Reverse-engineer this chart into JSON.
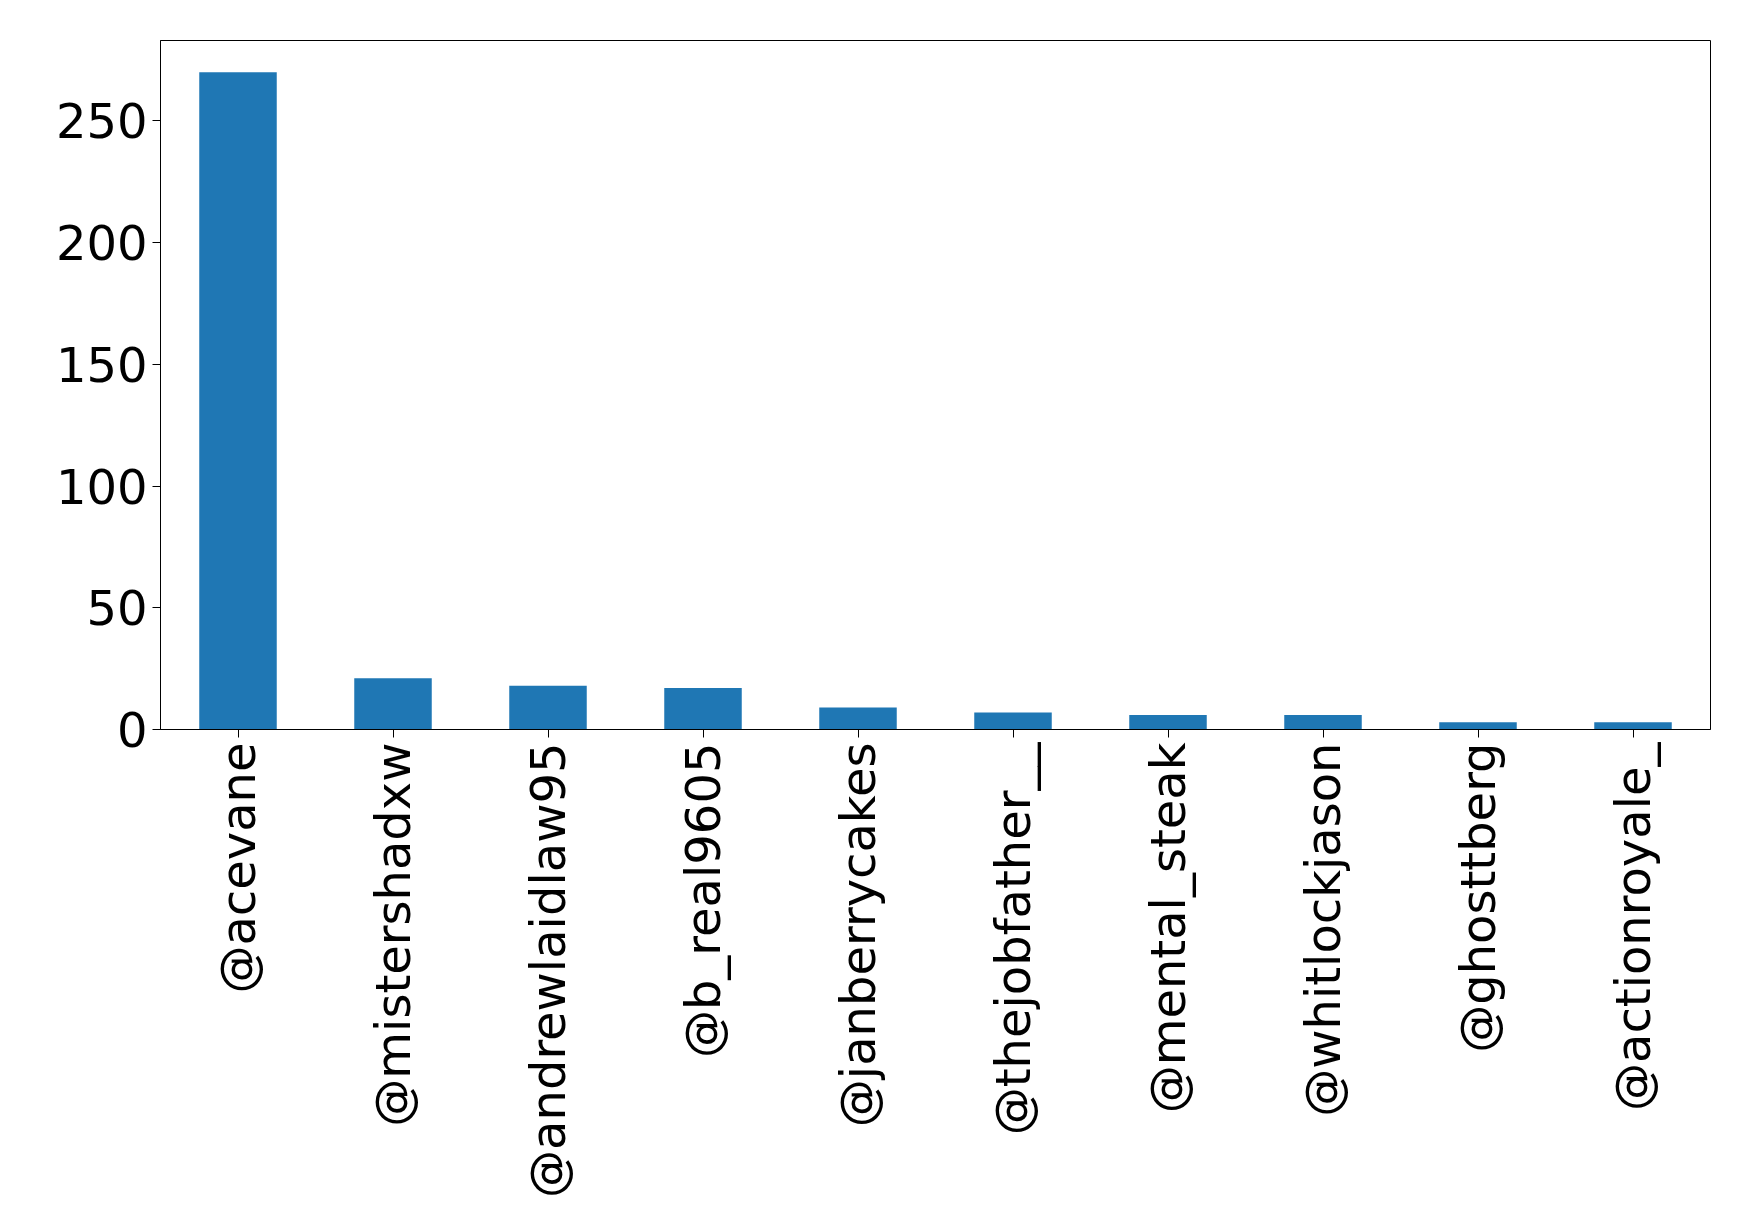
{
  "chart_data": {
    "type": "bar",
    "categories": [
      "@acevane",
      "@mistershadxw",
      "@andrewlaidlaw95",
      "@b_real9605",
      "@janberrycakes",
      "@thejobfather__",
      "@mental_steak",
      "@whitlockjason",
      "@ghosttberg",
      "@actionroyale_"
    ],
    "values": [
      270,
      21,
      18,
      17,
      9,
      7,
      6,
      6,
      3,
      3
    ],
    "color": "#1f77b4",
    "ylim": [
      0,
      283
    ],
    "yticks": [
      0,
      50,
      100,
      150,
      200,
      250
    ],
    "grid": false
  }
}
